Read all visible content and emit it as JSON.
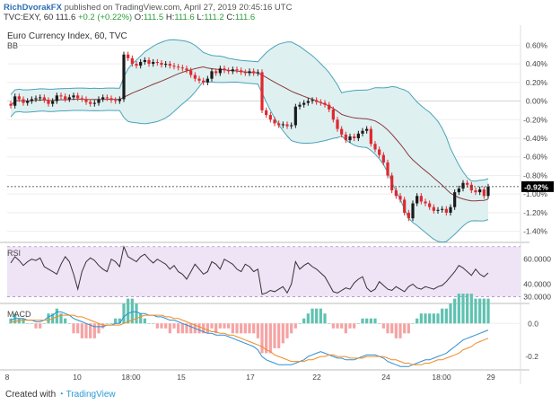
{
  "header": {
    "author": "RichDvorakFX",
    "published": "published on TradingView.com, April 27, 2019 20:45:16 UTC",
    "symbol": "TVC:EXY, 60",
    "last": "111.6",
    "change": "+0.2 (+0.22%)",
    "o_label": "O:",
    "o": "111.5",
    "h_label": "H:",
    "h": "111.6",
    "l_label": "L:",
    "l": "111.2",
    "c_label": "C:",
    "c": "111.6"
  },
  "title": "Euro Currency Index, 60, TVC",
  "bb_label": "BB",
  "rsi_label": "RSI",
  "macd_label": "MACD",
  "footer": {
    "created_with": "Created with",
    "brand": "TradingView"
  },
  "colors": {
    "candle_up": "#1a1a1a",
    "candle_down": "#e0282e",
    "bb_band": "#4aa3b8",
    "bb_fill": "#dff0f1",
    "bb_basis": "#8b3a3a",
    "rsi_line": "#333333",
    "rsi_band": "#efe3f6",
    "macd_line": "#2f8fd6",
    "signal_line": "#f08a24",
    "hist_pos": "#5fc2b0",
    "hist_neg": "#f5a3a3",
    "price_tag": "#000000"
  },
  "chart_data": [
    {
      "type": "candlestick",
      "title": "Euro Currency Index, 60, TVC",
      "unit": "%",
      "ylim": [
        -1.5,
        0.7
      ],
      "yticks": [
        "0.60%",
        "0.40%",
        "0.20%",
        "0.00%",
        "-0.20%",
        "-0.40%",
        "-0.60%",
        "-0.80%",
        "-1.00%",
        "-1.20%",
        "-1.40%"
      ],
      "last_value_label": "-0.92%",
      "xticks": [
        "8",
        "10",
        "18:00",
        "15",
        "17",
        "22",
        "24",
        "18:00",
        "29"
      ],
      "close": [
        -0.05,
        0.05,
        0.02,
        -0.02,
        0.0,
        0.02,
        0.03,
        0.04,
        0.01,
        -0.03,
        0.0,
        0.06,
        0.05,
        0.02,
        0.04,
        0.06,
        0.03,
        0.02,
        -0.01,
        -0.03,
        -0.02,
        0.02,
        0.04,
        0.03,
        0.01,
        0.0,
        0.02,
        0.5,
        0.46,
        0.4,
        0.38,
        0.42,
        0.44,
        0.4,
        0.42,
        0.41,
        0.39,
        0.4,
        0.38,
        0.37,
        0.36,
        0.35,
        0.33,
        0.28,
        0.24,
        0.22,
        0.2,
        0.24,
        0.32,
        0.3,
        0.35,
        0.33,
        0.32,
        0.34,
        0.33,
        0.31,
        0.3,
        0.32,
        0.3,
        0.31,
        -0.1,
        -0.15,
        -0.2,
        -0.24,
        -0.26,
        -0.25,
        -0.27,
        -0.26,
        -0.06,
        -0.04,
        -0.02,
        0.0,
        0.01,
        -0.01,
        -0.02,
        -0.04,
        -0.09,
        -0.2,
        -0.3,
        -0.36,
        -0.42,
        -0.38,
        -0.4,
        -0.35,
        -0.32,
        -0.3,
        -0.46,
        -0.52,
        -0.58,
        -0.66,
        -0.8,
        -0.96,
        -1.02,
        -1.06,
        -1.2,
        -1.26,
        -1.1,
        -1.02,
        -1.08,
        -1.1,
        -1.14,
        -1.18,
        -1.17,
        -1.16,
        -1.2,
        -1.14,
        -0.98,
        -0.94,
        -0.88,
        -0.9,
        -0.96,
        -0.98,
        -0.95,
        -1.02,
        -0.92
      ]
    },
    {
      "type": "line",
      "name": "RSI",
      "ylim": [
        26,
        72
      ],
      "yticks": [
        "60.0000",
        "40.0000",
        "30.0000"
      ],
      "band": [
        30,
        70
      ],
      "values": [
        57,
        62,
        59,
        55,
        58,
        60,
        59,
        61,
        54,
        52,
        50,
        48,
        56,
        62,
        58,
        48,
        36,
        50,
        58,
        61,
        59,
        55,
        52,
        50,
        60,
        58,
        54,
        70,
        62,
        60,
        58,
        62,
        64,
        60,
        57,
        60,
        58,
        56,
        52,
        55,
        50,
        48,
        44,
        50,
        56,
        52,
        48,
        50,
        58,
        56,
        52,
        60,
        58,
        56,
        52,
        50,
        56,
        54,
        50,
        52,
        32,
        33,
        35,
        34,
        36,
        38,
        33,
        40,
        58,
        52,
        55,
        57,
        54,
        52,
        49,
        46,
        40,
        34,
        33,
        35,
        37,
        36,
        41,
        44,
        46,
        37,
        34,
        36,
        42,
        39,
        36,
        35,
        38,
        36,
        34,
        38,
        40,
        37,
        36,
        38,
        37,
        36,
        38,
        39,
        42,
        46,
        50,
        55,
        53,
        50,
        47,
        52,
        48,
        46,
        49
      ]
    },
    {
      "type": "line",
      "name": "MACD",
      "ylim": [
        -0.27,
        0.11
      ],
      "yticks": [
        "0.0",
        "-0.2"
      ],
      "series": [
        {
          "name": "MACD",
          "values": [
            0.02,
            0.03,
            0.03,
            0.03,
            0.02,
            0.02,
            0.01,
            0.01,
            0.02,
            0.04,
            0.05,
            0.07,
            0.07,
            0.06,
            0.05,
            0.03,
            0.02,
            0.01,
            0.0,
            -0.01,
            -0.02,
            -0.02,
            -0.02,
            -0.01,
            -0.01,
            0.0,
            0.0,
            0.04,
            0.06,
            0.07,
            0.07,
            0.06,
            0.06,
            0.05,
            0.05,
            0.04,
            0.04,
            0.03,
            0.02,
            0.02,
            0.01,
            0.0,
            -0.01,
            -0.02,
            -0.03,
            -0.04,
            -0.05,
            -0.06,
            -0.06,
            -0.07,
            -0.07,
            -0.07,
            -0.08,
            -0.09,
            -0.1,
            -0.11,
            -0.12,
            -0.13,
            -0.14,
            -0.16,
            -0.2,
            -0.22,
            -0.23,
            -0.24,
            -0.25,
            -0.25,
            -0.25,
            -0.25,
            -0.24,
            -0.23,
            -0.22,
            -0.2,
            -0.19,
            -0.18,
            -0.17,
            -0.18,
            -0.19,
            -0.2,
            -0.21,
            -0.21,
            -0.22,
            -0.22,
            -0.22,
            -0.21,
            -0.2,
            -0.19,
            -0.19,
            -0.19,
            -0.2,
            -0.21,
            -0.23,
            -0.24,
            -0.25,
            -0.26,
            -0.26,
            -0.26,
            -0.25,
            -0.24,
            -0.23,
            -0.22,
            -0.22,
            -0.21,
            -0.2,
            -0.19,
            -0.18,
            -0.16,
            -0.14,
            -0.12,
            -0.1,
            -0.09,
            -0.08,
            -0.07,
            -0.06,
            -0.05,
            -0.04
          ]
        },
        {
          "name": "Signal",
          "values": [
            0.01,
            0.01,
            0.02,
            0.02,
            0.02,
            0.02,
            0.02,
            0.02,
            0.02,
            0.02,
            0.03,
            0.04,
            0.05,
            0.05,
            0.05,
            0.05,
            0.04,
            0.04,
            0.03,
            0.02,
            0.01,
            0.0,
            -0.01,
            -0.01,
            -0.01,
            -0.01,
            -0.01,
            0.0,
            0.01,
            0.02,
            0.03,
            0.04,
            0.05,
            0.05,
            0.05,
            0.05,
            0.05,
            0.04,
            0.04,
            0.03,
            0.03,
            0.02,
            0.01,
            0.0,
            -0.01,
            -0.02,
            -0.03,
            -0.04,
            -0.05,
            -0.05,
            -0.06,
            -0.06,
            -0.07,
            -0.07,
            -0.08,
            -0.09,
            -0.1,
            -0.11,
            -0.12,
            -0.13,
            -0.14,
            -0.16,
            -0.17,
            -0.19,
            -0.2,
            -0.21,
            -0.22,
            -0.23,
            -0.23,
            -0.23,
            -0.23,
            -0.22,
            -0.22,
            -0.21,
            -0.2,
            -0.2,
            -0.19,
            -0.19,
            -0.2,
            -0.2,
            -0.2,
            -0.21,
            -0.21,
            -0.21,
            -0.21,
            -0.2,
            -0.2,
            -0.2,
            -0.2,
            -0.2,
            -0.21,
            -0.22,
            -0.22,
            -0.23,
            -0.24,
            -0.24,
            -0.25,
            -0.25,
            -0.25,
            -0.24,
            -0.24,
            -0.23,
            -0.22,
            -0.22,
            -0.21,
            -0.2,
            -0.19,
            -0.18,
            -0.16,
            -0.15,
            -0.14,
            -0.12,
            -0.11,
            -0.1,
            -0.09
          ]
        }
      ]
    }
  ]
}
